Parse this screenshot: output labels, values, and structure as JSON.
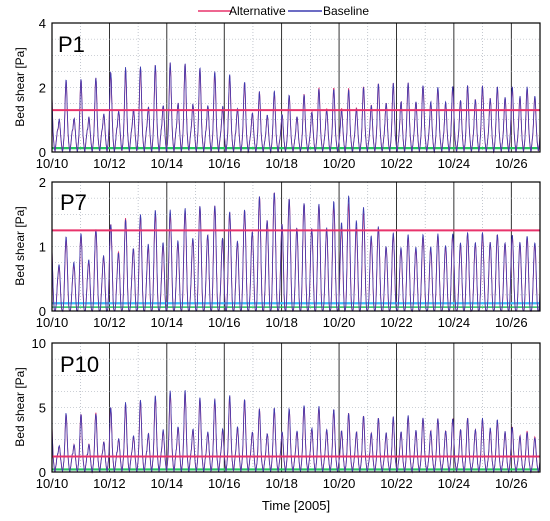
{
  "legend": {
    "alternative": "Alternative",
    "baseline": "Baseline"
  },
  "colors": {
    "alternative": "#e8336b",
    "baseline": "#3b3bb0",
    "low_threshold": "#22c55e",
    "low_threshold_p7": "#38bdf8"
  },
  "xlabel": "Time [2005]",
  "chart_data": [
    {
      "type": "line",
      "label": "P1",
      "ylabel": "Bed shear [Pa]",
      "ylim": [
        0,
        4
      ],
      "yticks": [
        "0",
        "2",
        "4"
      ],
      "xlim": [
        "10/10",
        "10/27"
      ],
      "xticks": [
        "10/10",
        "10/12",
        "10/14",
        "10/16",
        "10/18",
        "10/20",
        "10/22",
        "10/24",
        "10/26"
      ],
      "grid": true,
      "legend_position": "top-center",
      "thresholds": {
        "upper": 1.3,
        "lower": 0.12
      },
      "series": [
        {
          "name": "Alternative",
          "peaks": [
            [
              10.4,
              2.2
            ],
            [
              11.4,
              2.3
            ],
            [
              12.4,
              2.6
            ],
            [
              13.4,
              2.7
            ],
            [
              14.4,
              2.85
            ],
            [
              15.4,
              2.6
            ],
            [
              16.4,
              2.4
            ],
            [
              17.3,
              1.9
            ],
            [
              17.9,
              1.95
            ],
            [
              18.5,
              1.8
            ],
            [
              19.4,
              2.15
            ],
            [
              20.4,
              2.1
            ],
            [
              21.4,
              2.3
            ],
            [
              22.4,
              2.35
            ],
            [
              23.4,
              2.2
            ],
            [
              24.4,
              2.3
            ],
            [
              25.4,
              2.3
            ],
            [
              26.4,
              2.3
            ]
          ]
        },
        {
          "name": "Baseline",
          "peaks": [
            [
              10.4,
              2.25
            ],
            [
              11.4,
              2.3
            ],
            [
              12.4,
              2.65
            ],
            [
              13.4,
              2.75
            ],
            [
              14.4,
              2.85
            ],
            [
              15.4,
              2.65
            ],
            [
              16.4,
              2.45
            ],
            [
              17.3,
              1.9
            ],
            [
              17.9,
              2.0
            ],
            [
              18.5,
              1.8
            ],
            [
              19.4,
              2.1
            ],
            [
              20.4,
              2.05
            ],
            [
              21.4,
              2.3
            ],
            [
              22.4,
              2.35
            ],
            [
              23.4,
              2.25
            ],
            [
              24.4,
              2.3
            ],
            [
              25.4,
              2.3
            ],
            [
              26.4,
              2.35
            ]
          ]
        }
      ]
    },
    {
      "type": "line",
      "label": "P7",
      "ylabel": "Bed shear [Pa]",
      "ylim": [
        0,
        2
      ],
      "yticks": [
        "0",
        "1",
        "2"
      ],
      "xlim": [
        "10/10",
        "10/27"
      ],
      "xticks": [
        "10/10",
        "10/12",
        "10/14",
        "10/16",
        "10/18",
        "10/20",
        "10/22",
        "10/24",
        "10/26"
      ],
      "grid": true,
      "thresholds": {
        "upper": 1.25,
        "lower": 0.12
      },
      "series": [
        {
          "name": "Alternative",
          "peaks": [
            [
              10.5,
              1.1
            ],
            [
              11.5,
              1.25
            ],
            [
              12.5,
              1.45
            ],
            [
              13.5,
              1.5
            ],
            [
              14.5,
              1.55
            ],
            [
              15.5,
              1.7
            ],
            [
              16.5,
              1.5
            ],
            [
              17.5,
              1.95
            ],
            [
              18.5,
              1.75
            ],
            [
              19.5,
              1.7
            ],
            [
              20.5,
              1.75
            ],
            [
              21.5,
              1.3
            ],
            [
              22.5,
              1.2
            ],
            [
              23.5,
              1.25
            ],
            [
              24.5,
              1.3
            ],
            [
              25.5,
              1.3
            ],
            [
              26.5,
              1.25
            ]
          ]
        },
        {
          "name": "Baseline",
          "peaks": [
            [
              10.5,
              1.15
            ],
            [
              11.5,
              1.28
            ],
            [
              12.5,
              1.42
            ],
            [
              13.5,
              1.58
            ],
            [
              14.5,
              1.6
            ],
            [
              15.5,
              1.7
            ],
            [
              16.5,
              1.52
            ],
            [
              17.5,
              1.95
            ],
            [
              18.5,
              1.75
            ],
            [
              19.5,
              1.72
            ],
            [
              20.5,
              1.9
            ],
            [
              21.5,
              1.3
            ],
            [
              22.5,
              1.25
            ],
            [
              23.5,
              1.28
            ],
            [
              24.5,
              1.32
            ],
            [
              25.5,
              1.3
            ],
            [
              26.5,
              1.28
            ]
          ]
        }
      ]
    },
    {
      "type": "line",
      "label": "P10",
      "ylabel": "Bed shear [Pa]",
      "ylim": [
        0,
        10
      ],
      "yticks": [
        "0",
        "5",
        "10"
      ],
      "xlim": [
        "10/10",
        "10/27"
      ],
      "xticks": [
        "10/10",
        "10/12",
        "10/14",
        "10/16",
        "10/18",
        "10/20",
        "10/22",
        "10/24",
        "10/26"
      ],
      "grid": true,
      "thresholds": {
        "upper": 1.2,
        "lower": 0.2
      },
      "series": [
        {
          "name": "Alternative",
          "peaks": [
            [
              10.4,
              4.5
            ],
            [
              11.4,
              4.6
            ],
            [
              12.4,
              5.3
            ],
            [
              13.4,
              5.8
            ],
            [
              14.4,
              6.5
            ],
            [
              15.4,
              5.6
            ],
            [
              16.4,
              6.2
            ],
            [
              17.3,
              5.0
            ],
            [
              17.9,
              5.2
            ],
            [
              18.4,
              5.1
            ],
            [
              18.9,
              5.5
            ],
            [
              19.4,
              5.3
            ],
            [
              20.4,
              4.9
            ],
            [
              21.4,
              4.5
            ],
            [
              22.4,
              4.7
            ],
            [
              23.4,
              4.6
            ],
            [
              24.4,
              4.7
            ],
            [
              25.4,
              4.6
            ],
            [
              26.4,
              3.7
            ]
          ]
        },
        {
          "name": "Baseline",
          "peaks": [
            [
              10.4,
              4.6
            ],
            [
              11.4,
              4.5
            ],
            [
              12.4,
              5.4
            ],
            [
              13.4,
              5.9
            ],
            [
              14.4,
              6.7
            ],
            [
              15.4,
              5.7
            ],
            [
              16.4,
              6.3
            ],
            [
              17.3,
              5.0
            ],
            [
              17.9,
              5.3
            ],
            [
              18.4,
              5.2
            ],
            [
              18.9,
              5.6
            ],
            [
              19.4,
              5.4
            ],
            [
              20.4,
              4.9
            ],
            [
              21.4,
              4.5
            ],
            [
              22.4,
              4.8
            ],
            [
              23.4,
              4.6
            ],
            [
              24.4,
              4.7
            ],
            [
              25.4,
              4.7
            ],
            [
              26.4,
              3.6
            ]
          ]
        }
      ]
    }
  ]
}
